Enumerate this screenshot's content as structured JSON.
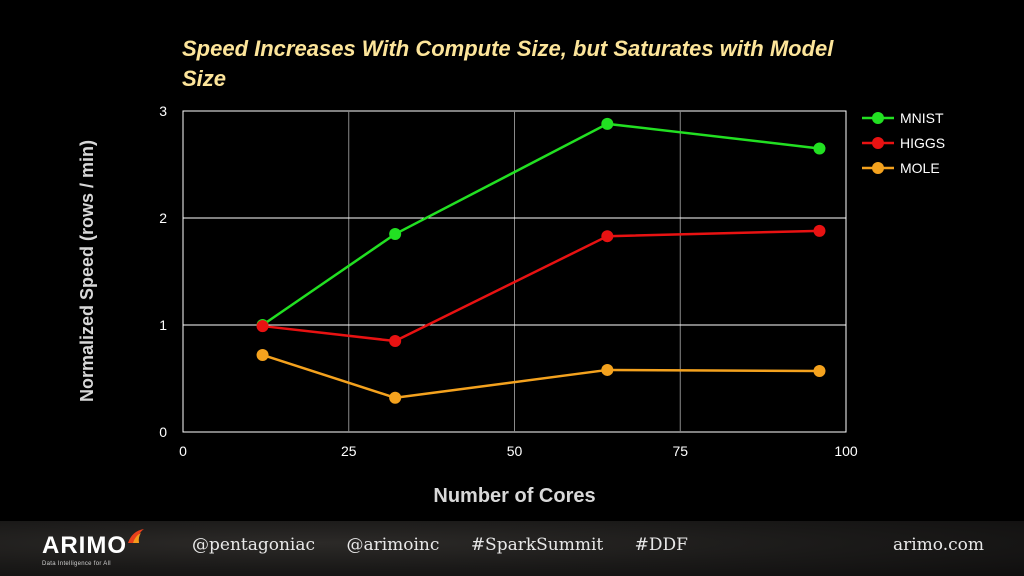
{
  "slide": {
    "title": "Speed Increases With Compute Size, but Saturates with Model Size"
  },
  "chart_data": {
    "type": "line",
    "title": "Speed Increases With Compute Size, but Saturates with Model Size",
    "xlabel": "Number of Cores",
    "ylabel": "Normalized Speed (rows / min)",
    "xlim": [
      0,
      100
    ],
    "ylim": [
      0,
      3
    ],
    "xticks": [
      0,
      25,
      50,
      75,
      100
    ],
    "yticks": [
      0,
      1,
      2,
      3
    ],
    "grid": true,
    "legend_position": "right",
    "series": [
      {
        "name": "MNIST",
        "color": "#22e022",
        "points": [
          [
            12,
            1.0
          ],
          [
            32,
            1.85
          ],
          [
            64,
            2.88
          ],
          [
            96,
            2.65
          ]
        ]
      },
      {
        "name": "HIGGS",
        "color": "#e81212",
        "points": [
          [
            12,
            0.99
          ],
          [
            32,
            0.85
          ],
          [
            64,
            1.83
          ],
          [
            96,
            1.88
          ]
        ]
      },
      {
        "name": "MOLE",
        "color": "#f4a21e",
        "points": [
          [
            12,
            0.72
          ],
          [
            32,
            0.32
          ],
          [
            64,
            0.58
          ],
          [
            96,
            0.57
          ]
        ]
      }
    ]
  },
  "footer": {
    "logo_text": "ARIMO",
    "logo_tagline": "Data Intelligence for All",
    "logo_icon": "flame-icon",
    "handles": [
      "@pentagoniac",
      "@arimoinc",
      "#SparkSummit",
      "#DDF"
    ],
    "website": "arimo.com"
  }
}
